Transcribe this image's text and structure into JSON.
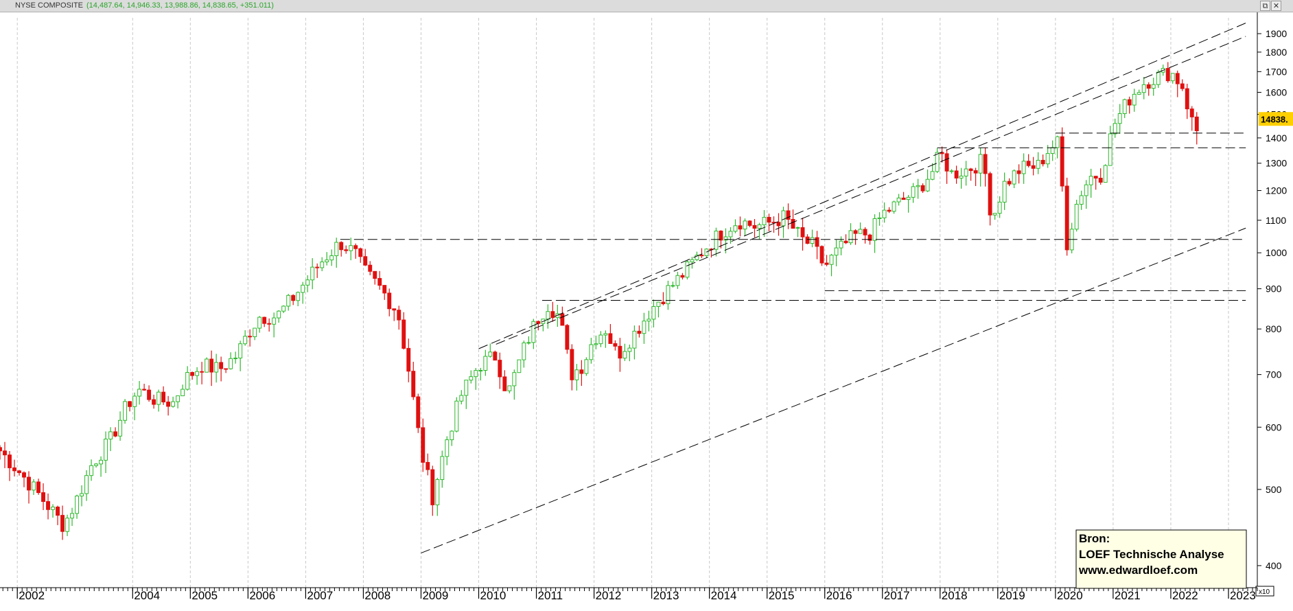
{
  "window": {
    "symbol": "NYSE COMPOSITE",
    "ohlc_text": "(14,487.64, 14,946.33, 13,988.86, 14,838.65, +351.011)",
    "buttons": [
      "⧉",
      "✕"
    ]
  },
  "chart_data": {
    "type": "candlestick",
    "title": "NYSE COMPOSITE",
    "last_price_label": "14838.",
    "scale_multiplier_label": "x10",
    "y_scale": "log",
    "ylim": [
      375,
      1990
    ],
    "xlim": [
      2001.7,
      2023.5
    ],
    "y_ticks": [
      400,
      500,
      600,
      700,
      800,
      900,
      1000,
      1100,
      1200,
      1300,
      1400,
      1500,
      1600,
      1700,
      1800,
      1900
    ],
    "x_ticks": [
      2002,
      2004,
      2005,
      2006,
      2007,
      2008,
      2009,
      2010,
      2011,
      2012,
      2013,
      2014,
      2015,
      2016,
      2017,
      2018,
      2019,
      2020,
      2021,
      2022,
      2023
    ],
    "grid": "vertical dashed",
    "colors": {
      "up": "#2db82d",
      "down": "#e01010",
      "trend": "#000000",
      "price_tag": "#ffd000"
    },
    "candle_path": [
      [
        2001.7,
        560
      ],
      [
        2002.0,
        530
      ],
      [
        2002.3,
        500
      ],
      [
        2002.6,
        470
      ],
      [
        2002.8,
        450
      ],
      [
        2003.0,
        480
      ],
      [
        2003.3,
        540
      ],
      [
        2003.6,
        575
      ],
      [
        2003.9,
        640
      ],
      [
        2004.1,
        670
      ],
      [
        2004.4,
        650
      ],
      [
        2004.7,
        645
      ],
      [
        2004.9,
        690
      ],
      [
        2005.2,
        720
      ],
      [
        2005.5,
        710
      ],
      [
        2005.8,
        740
      ],
      [
        2006.0,
        790
      ],
      [
        2006.2,
        830
      ],
      [
        2006.5,
        830
      ],
      [
        2006.8,
        880
      ],
      [
        2007.0,
        920
      ],
      [
        2007.3,
        980
      ],
      [
        2007.6,
        1030
      ],
      [
        2007.85,
        1000
      ],
      [
        2008.0,
        950
      ],
      [
        2008.3,
        900
      ],
      [
        2008.6,
        840
      ],
      [
        2008.8,
        700
      ],
      [
        2009.0,
        560
      ],
      [
        2009.2,
        490
      ],
      [
        2009.45,
        580
      ],
      [
        2009.7,
        660
      ],
      [
        2010.0,
        720
      ],
      [
        2010.3,
        740
      ],
      [
        2010.5,
        660
      ],
      [
        2010.8,
        760
      ],
      [
        2011.0,
        820
      ],
      [
        2011.2,
        860
      ],
      [
        2011.4,
        830
      ],
      [
        2011.6,
        700
      ],
      [
        2011.8,
        720
      ],
      [
        2012.0,
        780
      ],
      [
        2012.2,
        800
      ],
      [
        2012.4,
        740
      ],
      [
        2012.7,
        790
      ],
      [
        2013.0,
        850
      ],
      [
        2013.3,
        900
      ],
      [
        2013.6,
        950
      ],
      [
        2013.9,
        1010
      ],
      [
        2014.2,
        1060
      ],
      [
        2014.5,
        1100
      ],
      [
        2014.8,
        1080
      ],
      [
        2015.0,
        1090
      ],
      [
        2015.3,
        1110
      ],
      [
        2015.6,
        1040
      ],
      [
        2015.8,
        1020
      ],
      [
        2016.0,
        960
      ],
      [
        2016.2,
        1000
      ],
      [
        2016.5,
        1050
      ],
      [
        2016.8,
        1060
      ],
      [
        2017.0,
        1120
      ],
      [
        2017.3,
        1160
      ],
      [
        2017.6,
        1200
      ],
      [
        2017.9,
        1280
      ],
      [
        2018.0,
        1340
      ],
      [
        2018.2,
        1260
      ],
      [
        2018.5,
        1280
      ],
      [
        2018.75,
        1310
      ],
      [
        2018.9,
        1100
      ],
      [
        2019.1,
        1220
      ],
      [
        2019.4,
        1280
      ],
      [
        2019.7,
        1290
      ],
      [
        2019.9,
        1360
      ],
      [
        2020.05,
        1380
      ],
      [
        2020.2,
        1030
      ],
      [
        2020.4,
        1180
      ],
      [
        2020.6,
        1250
      ],
      [
        2020.8,
        1260
      ],
      [
        2021.0,
        1450
      ],
      [
        2021.3,
        1580
      ],
      [
        2021.55,
        1650
      ],
      [
        2021.8,
        1680
      ],
      [
        2022.0,
        1700
      ],
      [
        2022.2,
        1630
      ],
      [
        2022.35,
        1480
      ],
      [
        2022.45,
        1430
      ],
      [
        2022.5,
        1480
      ]
    ],
    "trendlines": [
      {
        "name": "upper-channel-1",
        "from": [
          2010.0,
          755
        ],
        "to": [
          2023.3,
          1960
        ]
      },
      {
        "name": "upper-channel-2",
        "from": [
          2010.3,
          765
        ],
        "to": [
          2023.3,
          1885
        ]
      },
      {
        "name": "lower-channel",
        "from": [
          2009.0,
          415
        ],
        "to": [
          2023.3,
          1075
        ]
      }
    ],
    "support_lines": [
      {
        "name": "support-1420",
        "from": 2020.0,
        "to": 2023.3,
        "value": 1420
      },
      {
        "name": "support-1360",
        "from": 2017.95,
        "to": 2023.3,
        "value": 1360
      },
      {
        "name": "support-1040",
        "from": 2007.6,
        "to": 2023.3,
        "value": 1040
      },
      {
        "name": "support-895",
        "from": 2016.0,
        "to": 2023.3,
        "value": 895
      },
      {
        "name": "support-870",
        "from": 2011.1,
        "to": 2023.3,
        "value": 870
      }
    ],
    "annotation": {
      "lines": [
        "Bron:",
        "LOEF Technische Analyse",
        "www.edwardloef.com"
      ]
    }
  }
}
